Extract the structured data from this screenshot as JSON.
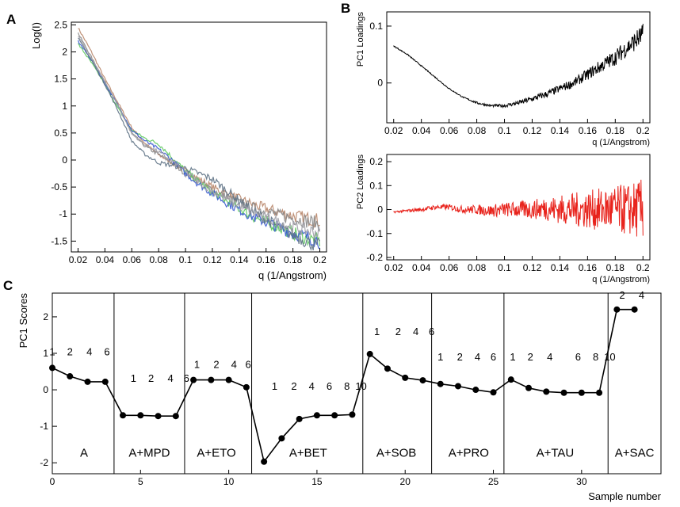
{
  "panel_letters": {
    "a": "A",
    "b": "B",
    "c": "C"
  },
  "chart_data": [
    {
      "id": "A",
      "type": "line",
      "title": "",
      "xlabel": "q (1/Angstrom)",
      "ylabel": "Log(I)",
      "xlim": [
        0.015,
        0.205
      ],
      "ylim": [
        -1.7,
        2.55
      ],
      "xticks": [
        0.02,
        0.04,
        0.06,
        0.08,
        0.1,
        0.12,
        0.14,
        0.16,
        0.18,
        0.2
      ],
      "xtick_labels": [
        "0.02",
        "0.04",
        "0.06",
        "0.08",
        "0.1",
        "0.12",
        "0.14",
        "0.16",
        "0.18",
        "0.2"
      ],
      "yticks": [
        -1.5,
        -1,
        -0.5,
        0,
        0.5,
        1,
        1.5,
        2,
        2.5
      ],
      "ytick_labels": [
        "-1.5",
        "-1",
        "-0.5",
        "0",
        "0.5",
        "1",
        "1.5",
        "2",
        "2.5"
      ],
      "x": [
        0.02,
        0.03,
        0.04,
        0.05,
        0.06,
        0.07,
        0.08,
        0.09,
        0.1,
        0.11,
        0.12,
        0.13,
        0.14,
        0.15,
        0.16,
        0.17,
        0.18,
        0.19,
        0.2
      ],
      "series": [
        {
          "name": "brown",
          "color": "#b8866a",
          "values": [
            2.45,
            2.0,
            1.5,
            1.05,
            0.6,
            0.3,
            0.1,
            -0.05,
            -0.2,
            -0.35,
            -0.5,
            -0.62,
            -0.72,
            -0.82,
            -0.9,
            -0.97,
            -1.03,
            -1.08,
            -1.12
          ]
        },
        {
          "name": "gray",
          "color": "#8a8a8a",
          "values": [
            2.35,
            1.9,
            1.45,
            1.0,
            0.5,
            0.25,
            0.1,
            -0.05,
            -0.25,
            -0.4,
            -0.55,
            -0.68,
            -0.78,
            -0.88,
            -0.95,
            -1.02,
            -1.08,
            -1.13,
            -1.18
          ]
        },
        {
          "name": "green",
          "color": "#5cc85c",
          "values": [
            2.15,
            1.8,
            1.4,
            0.95,
            0.55,
            0.4,
            0.3,
            0.05,
            -0.2,
            -0.4,
            -0.6,
            -0.75,
            -0.9,
            -1.05,
            -1.15,
            -1.25,
            -1.35,
            -1.45,
            -1.5
          ]
        },
        {
          "name": "blue",
          "color": "#3a5bd0",
          "values": [
            2.2,
            1.85,
            1.42,
            1.0,
            0.55,
            0.35,
            0.2,
            0.0,
            -0.25,
            -0.45,
            -0.62,
            -0.78,
            -0.92,
            -1.05,
            -1.15,
            -1.25,
            -1.35,
            -1.42,
            -1.5
          ]
        },
        {
          "name": "slate",
          "color": "#5f7386",
          "values": [
            2.25,
            1.85,
            1.4,
            0.9,
            0.35,
            0.1,
            -0.05,
            -0.1,
            -0.15,
            -0.25,
            -0.35,
            -0.55,
            -0.75,
            -0.95,
            -1.1,
            -1.25,
            -1.38,
            -1.5,
            -1.6
          ]
        },
        {
          "name": "silver",
          "color": "#a0a0a8",
          "values": [
            2.3,
            1.88,
            1.45,
            1.0,
            0.48,
            0.28,
            0.15,
            -0.02,
            -0.22,
            -0.4,
            -0.58,
            -0.72,
            -0.85,
            -0.97,
            -1.07,
            -1.16,
            -1.24,
            -1.3,
            -1.35
          ]
        }
      ]
    },
    {
      "id": "B1",
      "type": "line",
      "title": "",
      "xlabel": "q (1/Angstrom)",
      "ylabel": "PC1 Loadings",
      "xlim": [
        0.015,
        0.205
      ],
      "ylim": [
        -0.07,
        0.125
      ],
      "xticks": [
        0.02,
        0.04,
        0.06,
        0.08,
        0.1,
        0.12,
        0.14,
        0.16,
        0.18,
        0.2
      ],
      "xtick_labels": [
        "0.02",
        "0.04",
        "0.06",
        "0.08",
        "0.1",
        "0.12",
        "0.14",
        "0.16",
        "0.18",
        "0.2"
      ],
      "yticks": [
        0,
        0.1
      ],
      "ytick_labels": [
        "0",
        "0.1"
      ],
      "series": [
        {
          "name": "PC1",
          "color": "#000000",
          "x": [
            0.02,
            0.03,
            0.04,
            0.05,
            0.06,
            0.07,
            0.08,
            0.09,
            0.1,
            0.11,
            0.12,
            0.13,
            0.14,
            0.15,
            0.16,
            0.17,
            0.18,
            0.19,
            0.2
          ],
          "values": [
            0.065,
            0.05,
            0.03,
            0.01,
            -0.01,
            -0.025,
            -0.035,
            -0.04,
            -0.04,
            -0.035,
            -0.028,
            -0.02,
            -0.01,
            0.0,
            0.015,
            0.03,
            0.045,
            0.065,
            0.085
          ],
          "noise": [
            0.001,
            0.001,
            0.001,
            0.001,
            0.001,
            0.001,
            0.002,
            0.002,
            0.003,
            0.004,
            0.005,
            0.006,
            0.007,
            0.008,
            0.01,
            0.012,
            0.014,
            0.016,
            0.02
          ]
        }
      ]
    },
    {
      "id": "B2",
      "type": "line",
      "title": "",
      "xlabel": "q (1/Angstrom)",
      "ylabel": "PC2 Loadings",
      "xlim": [
        0.015,
        0.205
      ],
      "ylim": [
        -0.21,
        0.23
      ],
      "xticks": [
        0.02,
        0.04,
        0.06,
        0.08,
        0.1,
        0.12,
        0.14,
        0.16,
        0.18,
        0.2
      ],
      "xtick_labels": [
        "0.02",
        "0.04",
        "0.06",
        "0.08",
        "0.1",
        "0.12",
        "0.14",
        "0.16",
        "0.18",
        "0.2"
      ],
      "yticks": [
        -0.2,
        -0.1,
        0,
        0.1,
        0.2
      ],
      "ytick_labels": [
        "-0.2",
        "-0.1",
        "0",
        "0.1",
        "0.2"
      ],
      "series": [
        {
          "name": "PC2",
          "color": "#e8231c",
          "x": [
            0.02,
            0.03,
            0.04,
            0.05,
            0.06,
            0.07,
            0.08,
            0.09,
            0.1,
            0.11,
            0.12,
            0.13,
            0.14,
            0.15,
            0.16,
            0.17,
            0.18,
            0.19,
            0.2
          ],
          "values": [
            -0.01,
            -0.005,
            0.0,
            0.01,
            0.01,
            0.0,
            0.0,
            -0.005,
            0.0,
            0.0,
            0.0,
            0.005,
            0.0,
            0.0,
            0.0,
            0.0,
            0.0,
            0.0,
            0.0
          ],
          "noise": [
            0.004,
            0.006,
            0.008,
            0.01,
            0.012,
            0.015,
            0.02,
            0.025,
            0.03,
            0.035,
            0.04,
            0.05,
            0.06,
            0.07,
            0.08,
            0.09,
            0.1,
            0.11,
            0.13
          ]
        }
      ]
    },
    {
      "id": "C",
      "type": "line",
      "title": "",
      "xlabel": "Sample number",
      "ylabel": "PC1 Scores",
      "xlim": [
        0,
        34.5
      ],
      "ylim": [
        -2.3,
        2.65
      ],
      "xticks": [
        0,
        5,
        10,
        15,
        20,
        25,
        30
      ],
      "xtick_labels": [
        "0",
        "5",
        "10",
        "15",
        "20",
        "25",
        "30"
      ],
      "yticks": [
        -2,
        -1,
        0,
        1,
        2
      ],
      "ytick_labels": [
        "-2",
        "-1",
        "0",
        "1",
        "2"
      ],
      "x": [
        0,
        1,
        2,
        3,
        4,
        5,
        6,
        7,
        8,
        9,
        10,
        11,
        12,
        13,
        14,
        15,
        16,
        17,
        18,
        19,
        20,
        21,
        22,
        23,
        24,
        25,
        26,
        27,
        28,
        29,
        30,
        31,
        32,
        33
      ],
      "values": [
        0.6,
        0.37,
        0.22,
        0.22,
        -0.7,
        -0.7,
        -0.72,
        -0.72,
        0.27,
        0.27,
        0.27,
        0.07,
        -1.97,
        -1.33,
        -0.8,
        -0.7,
        -0.7,
        -0.68,
        0.98,
        0.58,
        0.33,
        0.26,
        0.16,
        0.1,
        0.0,
        -0.07,
        0.28,
        0.05,
        -0.05,
        -0.08,
        -0.08,
        -0.08,
        2.2,
        2.2
      ],
      "separators": [
        3.5,
        7.5,
        11.3,
        17.6,
        21.5,
        25.6,
        31.5
      ],
      "groups": [
        {
          "label": "A",
          "x": 1.8
        },
        {
          "label": "A+MPD",
          "x": 5.5
        },
        {
          "label": "A+ETO",
          "x": 9.3
        },
        {
          "label": "A+BET",
          "x": 14.5
        },
        {
          "label": "A+SOB",
          "x": 19.5
        },
        {
          "label": "A+PRO",
          "x": 23.6
        },
        {
          "label": "A+TAU",
          "x": 28.5
        },
        {
          "label": "A+SAC",
          "x": 33.0
        }
      ],
      "point_labels": [
        {
          "text": "1",
          "x": 0.0,
          "y": 0.95
        },
        {
          "text": "2",
          "x": 1.0,
          "y": 0.95
        },
        {
          "text": "4",
          "x": 2.1,
          "y": 0.95
        },
        {
          "text": "6",
          "x": 3.1,
          "y": 0.95
        },
        {
          "text": "1",
          "x": 4.6,
          "y": 0.22
        },
        {
          "text": "2",
          "x": 5.6,
          "y": 0.22
        },
        {
          "text": "4",
          "x": 6.7,
          "y": 0.22
        },
        {
          "text": "6",
          "x": 7.6,
          "y": 0.22
        },
        {
          "text": "1",
          "x": 8.2,
          "y": 0.6
        },
        {
          "text": "2",
          "x": 9.3,
          "y": 0.6
        },
        {
          "text": "4",
          "x": 10.3,
          "y": 0.6
        },
        {
          "text": "6",
          "x": 11.1,
          "y": 0.6
        },
        {
          "text": "1",
          "x": 12.6,
          "y": 0.0
        },
        {
          "text": "2",
          "x": 13.7,
          "y": 0.0
        },
        {
          "text": "4",
          "x": 14.7,
          "y": 0.0
        },
        {
          "text": "6",
          "x": 15.7,
          "y": 0.0
        },
        {
          "text": "8",
          "x": 16.7,
          "y": 0.0
        },
        {
          "text": "10",
          "x": 17.5,
          "y": 0.0
        },
        {
          "text": "1",
          "x": 18.4,
          "y": 1.5
        },
        {
          "text": "2",
          "x": 19.6,
          "y": 1.5
        },
        {
          "text": "4",
          "x": 20.6,
          "y": 1.5
        },
        {
          "text": "6",
          "x": 21.5,
          "y": 1.5
        },
        {
          "text": "1",
          "x": 22.0,
          "y": 0.8
        },
        {
          "text": "2",
          "x": 23.1,
          "y": 0.8
        },
        {
          "text": "4",
          "x": 24.1,
          "y": 0.8
        },
        {
          "text": "6",
          "x": 25.0,
          "y": 0.8
        },
        {
          "text": "1",
          "x": 26.1,
          "y": 0.8
        },
        {
          "text": "2",
          "x": 27.1,
          "y": 0.8
        },
        {
          "text": "4",
          "x": 28.2,
          "y": 0.8
        },
        {
          "text": "6",
          "x": 29.8,
          "y": 0.8
        },
        {
          "text": "8",
          "x": 30.8,
          "y": 0.8
        },
        {
          "text": "10",
          "x": 31.6,
          "y": 0.8
        },
        {
          "text": "2",
          "x": 32.3,
          "y": 2.5
        },
        {
          "text": "4",
          "x": 33.4,
          "y": 2.5
        }
      ]
    }
  ]
}
